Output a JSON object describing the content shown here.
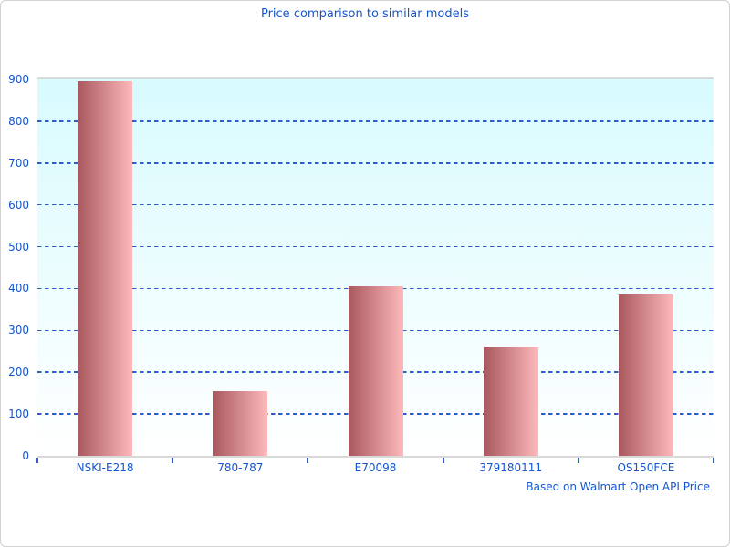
{
  "chart_data": {
    "type": "bar",
    "title": "Price comparison to similar models",
    "note": "Based on Walmart Open API Price",
    "categories": [
      "NSKI-E218",
      "780-787",
      "E70098",
      "379180111",
      "OS150FCE"
    ],
    "values": [
      895,
      155,
      405,
      260,
      385
    ],
    "xlabel": "",
    "ylabel": "",
    "ylim": [
      0,
      900
    ],
    "ytick_step": 100,
    "yticks": [
      0,
      100,
      200,
      300,
      400,
      500,
      600,
      700,
      800,
      900
    ],
    "grid": "horizontal-dashed",
    "legend": "none",
    "colors": {
      "bar_gradient_left": "#a8585e",
      "bar_gradient_right": "#fdb9bb",
      "plot_bg_top": "#d8fbfe",
      "plot_bg_bottom": "#ffffff",
      "label_blue": "#1456cd",
      "grid_blue": "#2e5cc5",
      "axis_gray": "#d9d9d9",
      "figure_border": "#d3d3d3"
    }
  }
}
